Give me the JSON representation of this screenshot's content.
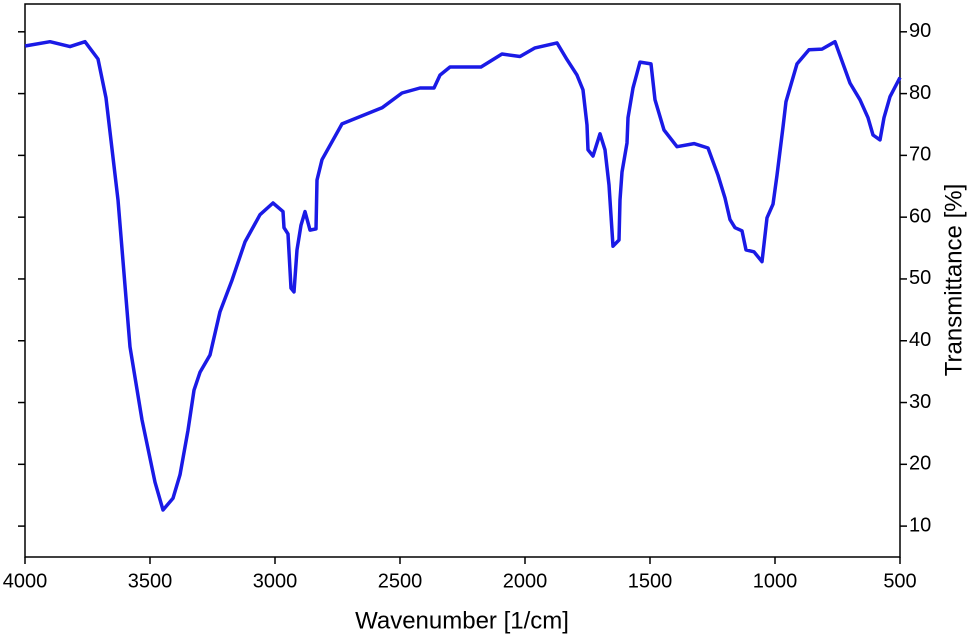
{
  "chart_data": {
    "type": "line",
    "x_label": "Wavenumber [1/cm]",
    "y_label": "Transmittance [%]",
    "xlim": [
      4000,
      500
    ],
    "ylim": [
      5,
      94.5
    ],
    "xticks": [
      4000,
      3500,
      3000,
      2500,
      2000,
      1500,
      1000,
      500
    ],
    "yticks": [
      10,
      20,
      30,
      40,
      50,
      60,
      70,
      80,
      90
    ],
    "grid": false,
    "series": [
      {
        "name": "Transmittance",
        "color": "#1a1ae6",
        "x": [
          4000,
          3900,
          3820,
          3760,
          3708,
          3676,
          3628,
          3580,
          3532,
          3480,
          3448,
          3408,
          3380,
          3348,
          3324,
          3300,
          3260,
          3220,
          3172,
          3120,
          3060,
          3008,
          2968,
          2964,
          2948,
          2936,
          2924,
          2912,
          2896,
          2880,
          2860,
          2836,
          2832,
          2812,
          2732,
          2572,
          2492,
          2420,
          2364,
          2340,
          2300,
          2176,
          2092,
          2020,
          1960,
          1872,
          1832,
          1792,
          1768,
          1752,
          1748,
          1728,
          1700,
          1680,
          1664,
          1648,
          1624,
          1620,
          1612,
          1592,
          1588,
          1568,
          1540,
          1496,
          1480,
          1444,
          1392,
          1324,
          1268,
          1228,
          1200,
          1180,
          1160,
          1132,
          1116,
          1084,
          1052,
          1032,
          1008,
          992,
          968,
          956,
          912,
          864,
          812,
          760,
          700,
          660,
          628,
          608,
          580,
          564,
          540,
          500
        ],
        "values": [
          87.7,
          88.4,
          87.6,
          88.4,
          85.6,
          79.3,
          62.8,
          39.0,
          27.2,
          17.1,
          12.6,
          14.5,
          18.3,
          25.5,
          32.0,
          34.9,
          37.7,
          44.7,
          49.8,
          56.0,
          60.4,
          62.3,
          60.9,
          58.3,
          57.3,
          48.5,
          47.9,
          54.7,
          58.7,
          60.9,
          57.9,
          58.1,
          66.0,
          69.3,
          75.1,
          77.7,
          80.1,
          80.9,
          80.9,
          83.0,
          84.3,
          84.3,
          86.4,
          86.0,
          87.4,
          88.2,
          85.5,
          83.0,
          80.6,
          74.9,
          70.9,
          69.9,
          73.5,
          70.9,
          65.2,
          55.3,
          56.3,
          62.8,
          67.3,
          72.0,
          76.1,
          80.9,
          85.1,
          84.8,
          79.0,
          74.1,
          71.4,
          71.9,
          71.2,
          66.8,
          63.1,
          59.6,
          58.3,
          57.8,
          54.7,
          54.4,
          52.8,
          59.9,
          62.1,
          66.8,
          74.6,
          78.7,
          84.8,
          87.1,
          87.2,
          88.4,
          81.7,
          79.0,
          76.1,
          73.3,
          72.5,
          76.1,
          79.5,
          82.6
        ]
      }
    ]
  }
}
